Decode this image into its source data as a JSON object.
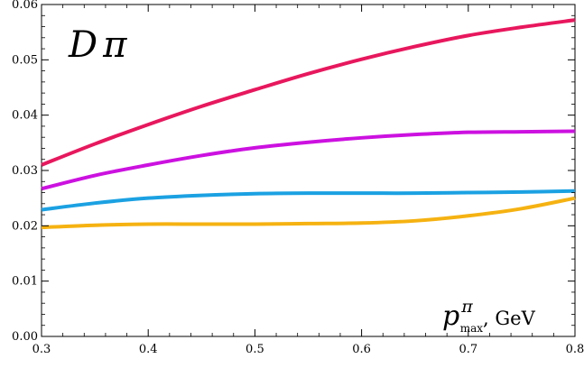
{
  "chart_data": {
    "type": "line",
    "title_parts": {
      "main": "D",
      "sub": "π"
    },
    "xlabel_parts": {
      "main": "p",
      "sup": "π",
      "sub": "max",
      "unit": ", GeV"
    },
    "ylabel": "",
    "xlim": [
      0.3,
      0.8
    ],
    "ylim": [
      0.0,
      0.06
    ],
    "x_ticks": [
      "0.3",
      "0.4",
      "0.5",
      "0.6",
      "0.7",
      "0.8"
    ],
    "y_ticks": [
      "0.00",
      "0.01",
      "0.02",
      "0.03",
      "0.04",
      "0.05",
      "0.06"
    ],
    "grid": false,
    "legend": "none",
    "x": [
      0.3,
      0.35,
      0.4,
      0.45,
      0.5,
      0.55,
      0.6,
      0.65,
      0.7,
      0.75,
      0.8
    ],
    "series": [
      {
        "color": "#e8175d",
        "values": [
          0.031,
          0.0348,
          0.0383,
          0.0416,
          0.0446,
          0.0475,
          0.0501,
          0.0524,
          0.0544,
          0.0559,
          0.0572
        ]
      },
      {
        "color": "#cc11e0",
        "values": [
          0.0267,
          0.0291,
          0.031,
          0.0327,
          0.0341,
          0.0351,
          0.0359,
          0.0365,
          0.0369,
          0.037,
          0.0371
        ]
      },
      {
        "color": "#1ba1e2",
        "values": [
          0.0229,
          0.0241,
          0.025,
          0.0255,
          0.0258,
          0.0259,
          0.0259,
          0.0259,
          0.026,
          0.0261,
          0.0263
        ]
      },
      {
        "color": "#f5b211",
        "values": [
          0.0197,
          0.0201,
          0.0203,
          0.0203,
          0.0203,
          0.0204,
          0.0205,
          0.0209,
          0.0218,
          0.0231,
          0.025
        ]
      }
    ]
  }
}
